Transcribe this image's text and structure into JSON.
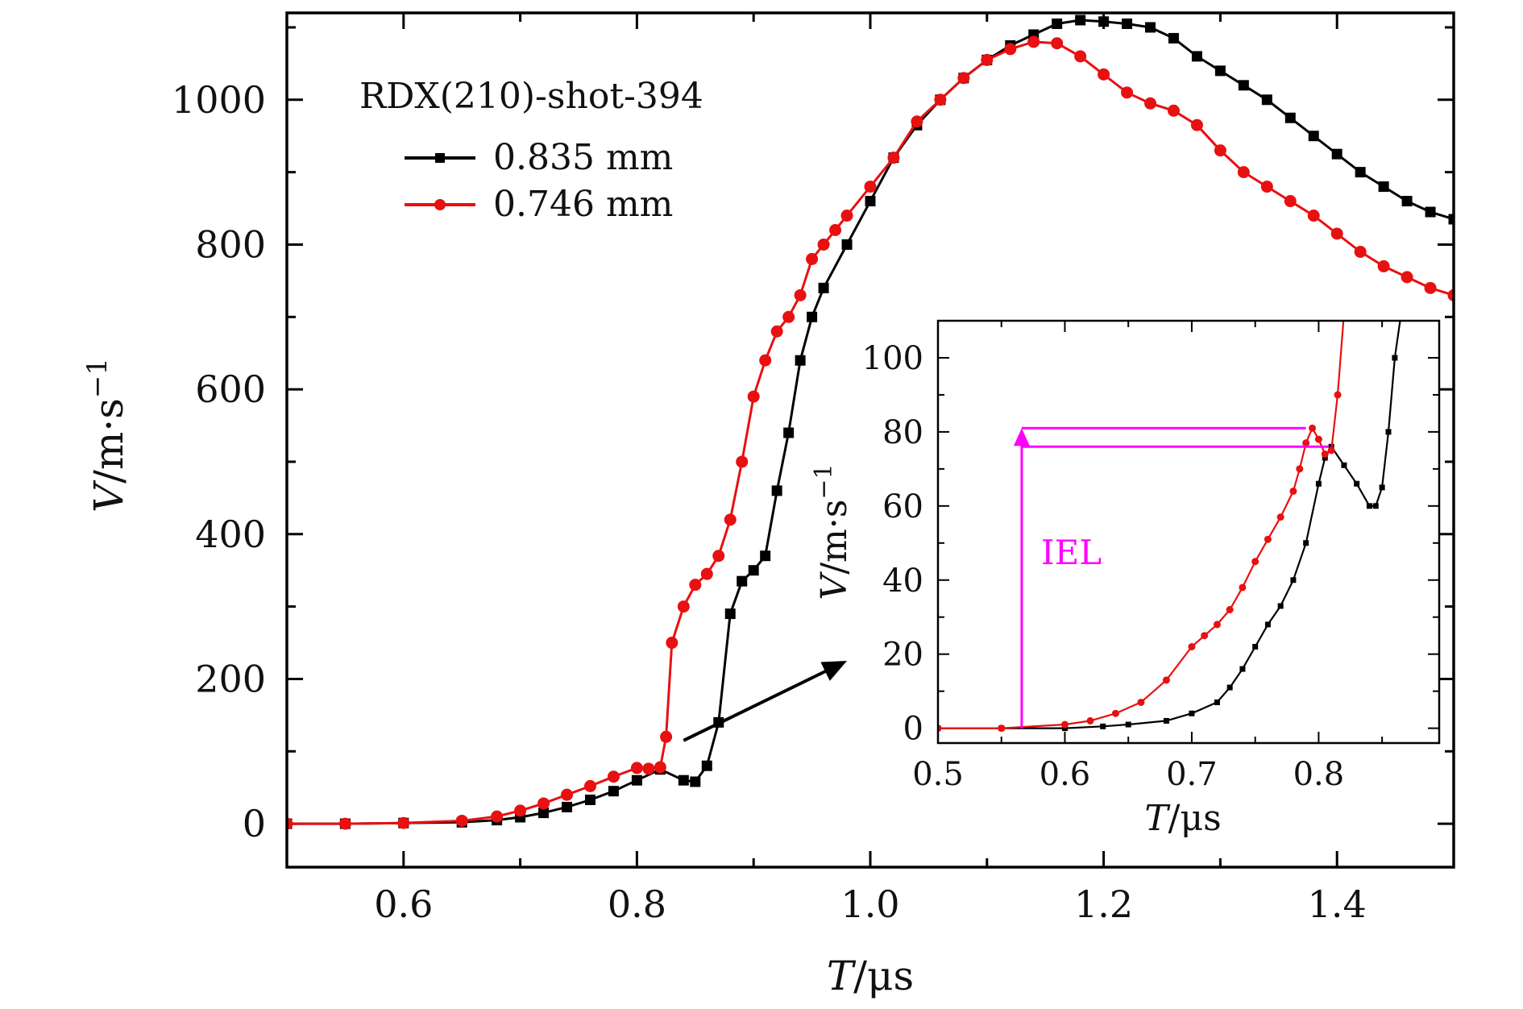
{
  "chart_data": [
    {
      "id": "main",
      "type": "line",
      "title": "",
      "xlabel_var": "T",
      "xlabel_unit": "/μs",
      "ylabel_var": "V",
      "ylabel_unit": "/m·s",
      "ylabel_exp": "−1",
      "xlim": [
        0.5,
        1.5
      ],
      "ylim": [
        -60,
        1120
      ],
      "xticks": [
        0.6,
        0.8,
        1.0,
        1.2,
        1.4
      ],
      "xtick_labels": [
        "0.6",
        "0.8",
        "1.0",
        "1.2",
        "1.4"
      ],
      "yticks": [
        0,
        200,
        400,
        600,
        800,
        1000
      ],
      "ytick_labels": [
        "0",
        "200",
        "400",
        "600",
        "800",
        "1000"
      ],
      "legend_title": "RDX(210)-shot-394",
      "legend_position": "top-left",
      "series": [
        {
          "name": "0.835 mm",
          "color": "#000000",
          "marker": "square",
          "x": [
            0.5,
            0.55,
            0.6,
            0.65,
            0.68,
            0.7,
            0.72,
            0.74,
            0.76,
            0.78,
            0.8,
            0.82,
            0.84,
            0.85,
            0.86,
            0.87,
            0.88,
            0.89,
            0.9,
            0.91,
            0.92,
            0.93,
            0.94,
            0.95,
            0.96,
            0.98,
            1.0,
            1.02,
            1.04,
            1.06,
            1.08,
            1.1,
            1.12,
            1.14,
            1.16,
            1.18,
            1.2,
            1.22,
            1.24,
            1.26,
            1.28,
            1.3,
            1.32,
            1.34,
            1.36,
            1.38,
            1.4,
            1.42,
            1.44,
            1.46,
            1.48,
            1.5
          ],
          "y": [
            0,
            0,
            1,
            2,
            5,
            9,
            15,
            23,
            33,
            45,
            60,
            75,
            60,
            58,
            80,
            140,
            290,
            335,
            350,
            370,
            460,
            540,
            640,
            700,
            740,
            800,
            860,
            920,
            965,
            1000,
            1030,
            1055,
            1075,
            1090,
            1105,
            1110,
            1108,
            1105,
            1100,
            1085,
            1060,
            1040,
            1020,
            1000,
            975,
            950,
            925,
            900,
            880,
            860,
            845,
            835
          ]
        },
        {
          "name": "0.746 mm",
          "color": "#e81010",
          "marker": "circle",
          "x": [
            0.5,
            0.55,
            0.6,
            0.65,
            0.68,
            0.7,
            0.72,
            0.74,
            0.76,
            0.78,
            0.8,
            0.81,
            0.82,
            0.825,
            0.83,
            0.84,
            0.85,
            0.86,
            0.87,
            0.88,
            0.89,
            0.9,
            0.91,
            0.92,
            0.93,
            0.94,
            0.95,
            0.96,
            0.97,
            0.98,
            1.0,
            1.02,
            1.04,
            1.06,
            1.08,
            1.1,
            1.12,
            1.14,
            1.16,
            1.18,
            1.2,
            1.22,
            1.24,
            1.26,
            1.28,
            1.3,
            1.32,
            1.34,
            1.36,
            1.38,
            1.4,
            1.42,
            1.44,
            1.46,
            1.48,
            1.5
          ],
          "y": [
            0,
            0,
            1,
            4,
            10,
            18,
            28,
            40,
            52,
            65,
            77,
            76,
            78,
            120,
            250,
            300,
            330,
            345,
            370,
            420,
            500,
            590,
            640,
            680,
            700,
            730,
            780,
            800,
            820,
            840,
            880,
            920,
            970,
            1000,
            1030,
            1055,
            1070,
            1080,
            1078,
            1060,
            1035,
            1010,
            995,
            985,
            965,
            930,
            900,
            880,
            860,
            840,
            815,
            790,
            770,
            755,
            740,
            730
          ]
        }
      ],
      "annotation_arrow": {
        "from": [
          0.84,
          115
        ],
        "to": [
          0.98,
          225
        ]
      }
    },
    {
      "id": "inset",
      "type": "line",
      "xlabel_var": "T",
      "xlabel_unit": "/μs",
      "ylabel_var": "V",
      "ylabel_unit": "/m·s",
      "ylabel_exp": "−1",
      "xlim": [
        0.5,
        0.895
      ],
      "ylim": [
        -4,
        110
      ],
      "xticks": [
        0.5,
        0.6,
        0.7,
        0.8
      ],
      "xtick_labels": [
        "0.5",
        "0.6",
        "0.7",
        "0.8"
      ],
      "yticks": [
        0,
        20,
        40,
        60,
        80,
        100
      ],
      "ytick_labels": [
        "0",
        "20",
        "40",
        "60",
        "80",
        "100"
      ],
      "series": [
        {
          "name": "0.835 mm",
          "color": "#000000",
          "marker": "square",
          "x": [
            0.5,
            0.55,
            0.6,
            0.63,
            0.65,
            0.68,
            0.7,
            0.72,
            0.73,
            0.74,
            0.75,
            0.76,
            0.77,
            0.78,
            0.79,
            0.8,
            0.805,
            0.81,
            0.82,
            0.83,
            0.84,
            0.845,
            0.85,
            0.855,
            0.86,
            0.865
          ],
          "y": [
            0,
            0,
            0,
            0.5,
            1,
            2,
            4,
            7,
            11,
            16,
            22,
            28,
            33,
            40,
            50,
            66,
            73,
            76,
            71,
            66,
            60,
            60,
            65,
            80,
            100,
            112
          ]
        },
        {
          "name": "0.746 mm",
          "color": "#e81010",
          "marker": "circle",
          "x": [
            0.5,
            0.55,
            0.6,
            0.62,
            0.64,
            0.66,
            0.68,
            0.7,
            0.71,
            0.72,
            0.73,
            0.74,
            0.75,
            0.76,
            0.77,
            0.78,
            0.785,
            0.79,
            0.795,
            0.8,
            0.805,
            0.81,
            0.815,
            0.82
          ],
          "y": [
            0,
            0,
            1,
            2,
            4,
            7,
            13,
            22,
            25,
            28,
            32,
            38,
            45,
            51,
            57,
            64,
            70,
            77,
            81,
            78,
            74,
            75,
            90,
            112
          ]
        }
      ],
      "iel": {
        "label": "IEL",
        "color": "#ff00ff",
        "x": 0.566,
        "y_top": 81,
        "y_second": 76,
        "x_end_top": 0.79,
        "x_end_second": 0.808
      }
    }
  ]
}
